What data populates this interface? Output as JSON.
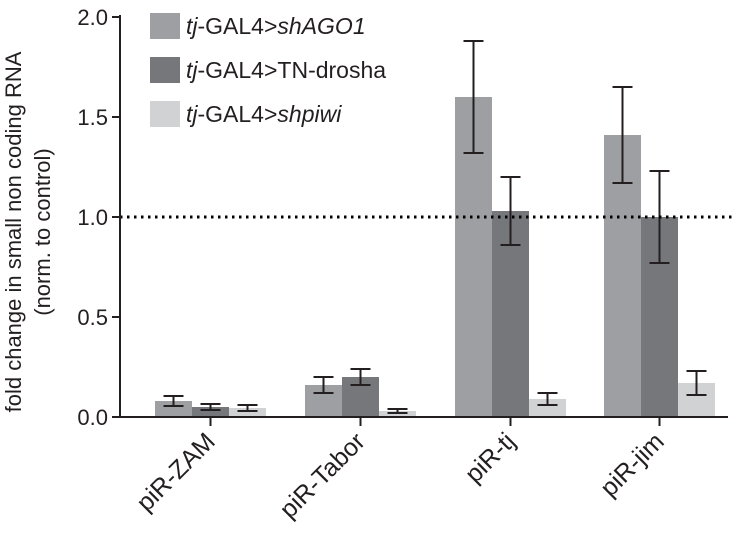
{
  "chart_data": {
    "type": "bar",
    "title": "",
    "xlabel": "",
    "ylabel_lines": [
      "fold change in small non coding RNA",
      "(norm. to control)"
    ],
    "ylim": [
      0,
      2.0
    ],
    "yticks": [
      "0.0",
      "0.5",
      "1.0",
      "1.5",
      "2.0"
    ],
    "reference_line": 1.0,
    "grid": false,
    "legend_position": "top-left",
    "categories": [
      "piR-ZAM",
      "piR-Tabor",
      "piR-tj",
      "piR-jim"
    ],
    "series": [
      {
        "legend_parts": [
          {
            "text": "tj",
            "italic": true
          },
          {
            "text": "-GAL4>",
            "italic": false
          },
          {
            "text": "shAGO1",
            "italic": true
          }
        ],
        "color": "#9d9fa2",
        "values": [
          0.08,
          0.16,
          1.6,
          1.41
        ],
        "error": [
          0.025,
          0.04,
          0.28,
          0.24
        ]
      },
      {
        "legend_parts": [
          {
            "text": "tj",
            "italic": true
          },
          {
            "text": "-GAL4>TN-drosha",
            "italic": false
          }
        ],
        "color": "#76777a",
        "values": [
          0.05,
          0.2,
          1.03,
          1.0
        ],
        "error": [
          0.015,
          0.04,
          0.17,
          0.23
        ]
      },
      {
        "legend_parts": [
          {
            "text": "tj",
            "italic": true
          },
          {
            "text": "-GAL4>",
            "italic": false
          },
          {
            "text": "shpiwi",
            "italic": true
          }
        ],
        "color": "#d1d2d4",
        "values": [
          0.045,
          0.03,
          0.09,
          0.17
        ],
        "error": [
          0.015,
          0.01,
          0.03,
          0.06
        ]
      }
    ]
  }
}
